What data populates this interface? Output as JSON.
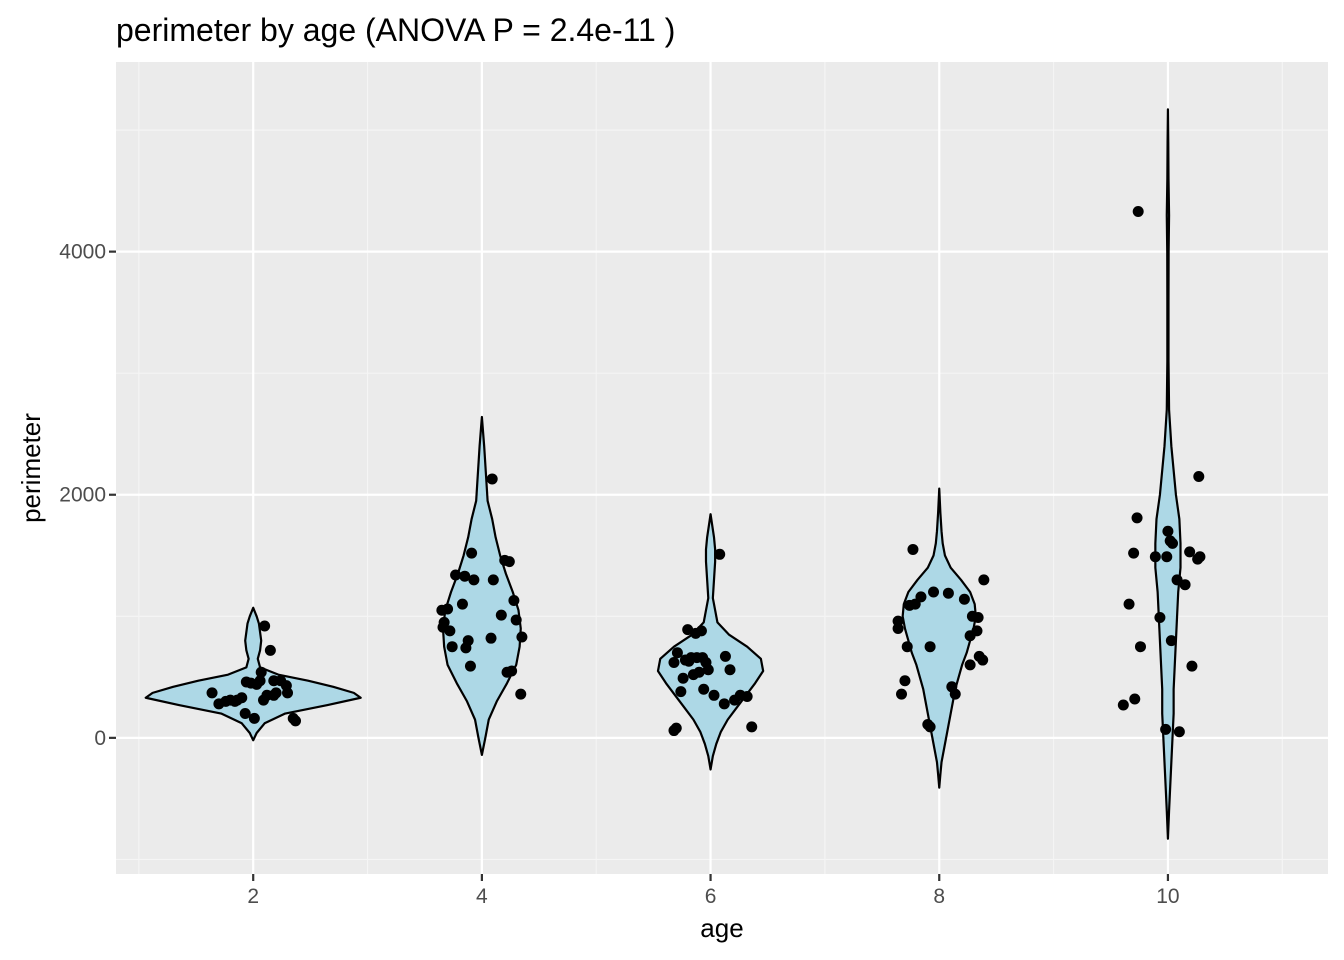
{
  "chart_data": {
    "type": "violin",
    "title": "perimeter by age (ANOVA P = 2.4e-11 )",
    "xlabel": "age",
    "ylabel": "perimeter",
    "xlim": [
      0.8,
      11.4
    ],
    "ylim": [
      -1120,
      5560
    ],
    "x_ticks": [
      2,
      4,
      6,
      8,
      10
    ],
    "y_ticks": [
      0,
      2000,
      4000
    ],
    "x_tick_labels": [
      "2",
      "4",
      "6",
      "8",
      "10"
    ],
    "y_tick_labels": [
      "0",
      "2000",
      "4000"
    ],
    "grid": true,
    "legend": "none",
    "colors": {
      "panel": "#ebebeb",
      "grid_major": "#ffffff",
      "grid_minor": "#f5f5f5",
      "violin_fill": "#add8e6",
      "violin_stroke": "#000000",
      "points": "#000000",
      "tick": "#333333"
    },
    "groups": [
      {
        "x": 2,
        "violin_min": -20,
        "violin_max": 1070,
        "violin_profile": [
          [
            -20,
            0.0
          ],
          [
            40,
            0.03
          ],
          [
            120,
            0.1
          ],
          [
            200,
            0.28
          ],
          [
            270,
            0.65
          ],
          [
            330,
            0.94
          ],
          [
            370,
            0.88
          ],
          [
            420,
            0.7
          ],
          [
            470,
            0.48
          ],
          [
            520,
            0.22
          ],
          [
            580,
            0.06
          ],
          [
            650,
            0.04
          ],
          [
            720,
            0.06
          ],
          [
            800,
            0.07
          ],
          [
            870,
            0.06
          ],
          [
            940,
            0.05
          ],
          [
            1000,
            0.03
          ],
          [
            1070,
            0.0
          ]
        ],
        "points": [
          [
            1.64,
            370
          ],
          [
            1.7,
            280
          ],
          [
            1.76,
            300
          ],
          [
            1.8,
            310
          ],
          [
            1.84,
            300
          ],
          [
            1.86,
            310
          ],
          [
            1.9,
            330
          ],
          [
            1.93,
            200
          ],
          [
            1.94,
            460
          ],
          [
            1.98,
            450
          ],
          [
            2.01,
            160
          ],
          [
            2.03,
            440
          ],
          [
            2.06,
            470
          ],
          [
            2.07,
            540
          ],
          [
            2.09,
            310
          ],
          [
            2.1,
            920
          ],
          [
            2.12,
            350
          ],
          [
            2.15,
            720
          ],
          [
            2.18,
            350
          ],
          [
            2.18,
            470
          ],
          [
            2.2,
            370
          ],
          [
            2.24,
            470
          ],
          [
            2.29,
            430
          ],
          [
            2.3,
            370
          ],
          [
            2.35,
            160
          ],
          [
            2.37,
            140
          ]
        ]
      },
      {
        "x": 4,
        "violin_min": -140,
        "violin_max": 2640,
        "violin_profile": [
          [
            -140,
            0.0
          ],
          [
            0,
            0.03
          ],
          [
            150,
            0.06
          ],
          [
            300,
            0.13
          ],
          [
            450,
            0.22
          ],
          [
            600,
            0.3
          ],
          [
            750,
            0.33
          ],
          [
            900,
            0.34
          ],
          [
            1050,
            0.32
          ],
          [
            1200,
            0.27
          ],
          [
            1350,
            0.21
          ],
          [
            1500,
            0.16
          ],
          [
            1650,
            0.12
          ],
          [
            1800,
            0.09
          ],
          [
            1950,
            0.05
          ],
          [
            2100,
            0.04
          ],
          [
            2250,
            0.03
          ],
          [
            2400,
            0.02
          ],
          [
            2640,
            0.0
          ]
        ],
        "points": [
          [
            3.65,
            1050
          ],
          [
            3.66,
            910
          ],
          [
            3.67,
            950
          ],
          [
            3.7,
            1060
          ],
          [
            3.72,
            880
          ],
          [
            3.74,
            750
          ],
          [
            3.77,
            1340
          ],
          [
            3.83,
            1100
          ],
          [
            3.85,
            1330
          ],
          [
            3.86,
            740
          ],
          [
            3.88,
            800
          ],
          [
            3.9,
            590
          ],
          [
            3.91,
            1520
          ],
          [
            3.93,
            1300
          ],
          [
            4.08,
            820
          ],
          [
            4.09,
            2130
          ],
          [
            4.1,
            1300
          ],
          [
            4.17,
            1010
          ],
          [
            4.2,
            1460
          ],
          [
            4.22,
            540
          ],
          [
            4.24,
            1450
          ],
          [
            4.26,
            550
          ],
          [
            4.28,
            1130
          ],
          [
            4.3,
            970
          ],
          [
            4.34,
            360
          ],
          [
            4.35,
            830
          ]
        ]
      },
      {
        "x": 6,
        "violin_min": -260,
        "violin_max": 1840,
        "violin_profile": [
          [
            -260,
            0.0
          ],
          [
            -150,
            0.02
          ],
          [
            -50,
            0.05
          ],
          [
            50,
            0.09
          ],
          [
            150,
            0.15
          ],
          [
            250,
            0.23
          ],
          [
            350,
            0.31
          ],
          [
            450,
            0.39
          ],
          [
            550,
            0.46
          ],
          [
            650,
            0.44
          ],
          [
            750,
            0.32
          ],
          [
            850,
            0.16
          ],
          [
            950,
            0.06
          ],
          [
            1050,
            0.04
          ],
          [
            1150,
            0.02
          ],
          [
            1300,
            0.03
          ],
          [
            1450,
            0.04
          ],
          [
            1550,
            0.04
          ],
          [
            1650,
            0.03
          ],
          [
            1840,
            0.0
          ]
        ],
        "points": [
          [
            5.68,
            60
          ],
          [
            5.7,
            80
          ],
          [
            5.68,
            620
          ],
          [
            5.71,
            700
          ],
          [
            5.74,
            380
          ],
          [
            5.76,
            490
          ],
          [
            5.78,
            640
          ],
          [
            5.8,
            890
          ],
          [
            5.81,
            630
          ],
          [
            5.83,
            660
          ],
          [
            5.85,
            520
          ],
          [
            5.87,
            860
          ],
          [
            5.88,
            660
          ],
          [
            5.9,
            540
          ],
          [
            5.92,
            880
          ],
          [
            5.93,
            660
          ],
          [
            5.94,
            400
          ],
          [
            5.96,
            620
          ],
          [
            5.98,
            560
          ],
          [
            6.03,
            350
          ],
          [
            6.08,
            1510
          ],
          [
            6.12,
            280
          ],
          [
            6.13,
            670
          ],
          [
            6.17,
            560
          ],
          [
            6.21,
            310
          ],
          [
            6.26,
            350
          ],
          [
            6.32,
            340
          ],
          [
            6.36,
            90
          ]
        ]
      },
      {
        "x": 8,
        "violin_min": -410,
        "violin_max": 2050,
        "violin_profile": [
          [
            -410,
            0.0
          ],
          [
            -300,
            0.01
          ],
          [
            -200,
            0.02
          ],
          [
            -100,
            0.04
          ],
          [
            0,
            0.06
          ],
          [
            100,
            0.08
          ],
          [
            200,
            0.1
          ],
          [
            300,
            0.12
          ],
          [
            400,
            0.14
          ],
          [
            500,
            0.17
          ],
          [
            600,
            0.2
          ],
          [
            700,
            0.24
          ],
          [
            800,
            0.27
          ],
          [
            900,
            0.3
          ],
          [
            1000,
            0.32
          ],
          [
            1100,
            0.31
          ],
          [
            1200,
            0.27
          ],
          [
            1300,
            0.19
          ],
          [
            1400,
            0.1
          ],
          [
            1500,
            0.05
          ],
          [
            1600,
            0.03
          ],
          [
            1700,
            0.02
          ],
          [
            1850,
            0.01
          ],
          [
            2050,
            0.0
          ]
        ],
        "points": [
          [
            7.64,
            900
          ],
          [
            7.64,
            960
          ],
          [
            7.67,
            360
          ],
          [
            7.7,
            470
          ],
          [
            7.72,
            750
          ],
          [
            7.74,
            1090
          ],
          [
            7.77,
            1550
          ],
          [
            7.79,
            1100
          ],
          [
            7.84,
            1160
          ],
          [
            7.9,
            110
          ],
          [
            7.92,
            750
          ],
          [
            7.92,
            90
          ],
          [
            7.95,
            1200
          ],
          [
            8.08,
            1190
          ],
          [
            8.11,
            420
          ],
          [
            8.14,
            360
          ],
          [
            8.22,
            1140
          ],
          [
            8.27,
            600
          ],
          [
            8.27,
            840
          ],
          [
            8.29,
            1000
          ],
          [
            8.33,
            880
          ],
          [
            8.34,
            990
          ],
          [
            8.35,
            670
          ],
          [
            8.38,
            640
          ],
          [
            8.39,
            1300
          ]
        ]
      },
      {
        "x": 10,
        "violin_min": -830,
        "violin_max": 5170,
        "violin_profile": [
          [
            -830,
            0.0
          ],
          [
            -600,
            0.01
          ],
          [
            -400,
            0.02
          ],
          [
            -200,
            0.03
          ],
          [
            0,
            0.04
          ],
          [
            200,
            0.05
          ],
          [
            400,
            0.05
          ],
          [
            600,
            0.06
          ],
          [
            800,
            0.07
          ],
          [
            1000,
            0.08
          ],
          [
            1200,
            0.09
          ],
          [
            1400,
            0.11
          ],
          [
            1600,
            0.11
          ],
          [
            1800,
            0.1
          ],
          [
            2000,
            0.07
          ],
          [
            2200,
            0.05
          ],
          [
            2400,
            0.03
          ],
          [
            2700,
            0.01
          ],
          [
            3100,
            0.005
          ],
          [
            3600,
            0.005
          ],
          [
            4000,
            0.006
          ],
          [
            4300,
            0.01
          ],
          [
            4600,
            0.005
          ],
          [
            4900,
            0.003
          ],
          [
            5170,
            0.0
          ]
        ],
        "points": [
          [
            9.61,
            270
          ],
          [
            9.66,
            1100
          ],
          [
            9.7,
            1520
          ],
          [
            9.71,
            320
          ],
          [
            9.73,
            1810
          ],
          [
            9.76,
            750
          ],
          [
            9.74,
            4330
          ],
          [
            9.89,
            1490
          ],
          [
            9.93,
            990
          ],
          [
            9.99,
            1490
          ],
          [
            10.0,
            1700
          ],
          [
            10.02,
            1620
          ],
          [
            10.03,
            800
          ],
          [
            10.04,
            1600
          ],
          [
            10.08,
            1300
          ],
          [
            10.1,
            50
          ],
          [
            10.15,
            1260
          ],
          [
            10.19,
            1530
          ],
          [
            10.21,
            590
          ],
          [
            10.26,
            1470
          ],
          [
            10.27,
            2150
          ],
          [
            10.28,
            1490
          ],
          [
            9.98,
            70
          ]
        ]
      }
    ]
  }
}
